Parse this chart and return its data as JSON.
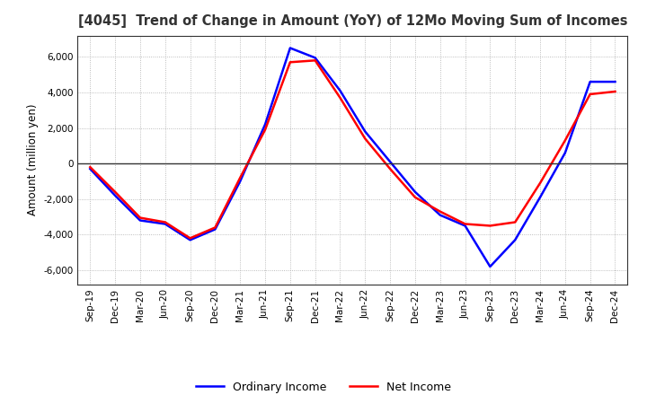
{
  "title": "[4045]  Trend of Change in Amount (YoY) of 12Mo Moving Sum of Incomes",
  "ylabel": "Amount (million yen)",
  "ylim": [
    -6800,
    7200
  ],
  "yticks": [
    -6000,
    -4000,
    -2000,
    0,
    2000,
    4000,
    6000
  ],
  "background_color": "#ffffff",
  "grid_color": "#aaaaaa",
  "ordinary_income_color": "#0000ff",
  "net_income_color": "#ff0000",
  "x_labels": [
    "Sep-19",
    "Dec-19",
    "Mar-20",
    "Jun-20",
    "Sep-20",
    "Dec-20",
    "Mar-21",
    "Jun-21",
    "Sep-21",
    "Dec-21",
    "Mar-22",
    "Jun-22",
    "Sep-22",
    "Dec-22",
    "Mar-23",
    "Jun-23",
    "Sep-23",
    "Dec-23",
    "Mar-24",
    "Jun-24",
    "Sep-24",
    "Dec-24"
  ],
  "ordinary_income": [
    -300,
    -1800,
    -3200,
    -3400,
    -4300,
    -3700,
    -1000,
    2200,
    6500,
    5950,
    4100,
    1800,
    100,
    -1600,
    -2900,
    -3500,
    -5800,
    -4300,
    -1900,
    600,
    4600,
    4600
  ],
  "net_income": [
    -200,
    -1600,
    -3050,
    -3300,
    -4200,
    -3600,
    -800,
    1900,
    5700,
    5800,
    3700,
    1400,
    -300,
    -1900,
    -2700,
    -3400,
    -3500,
    -3300,
    -1100,
    1300,
    3900,
    4050
  ]
}
